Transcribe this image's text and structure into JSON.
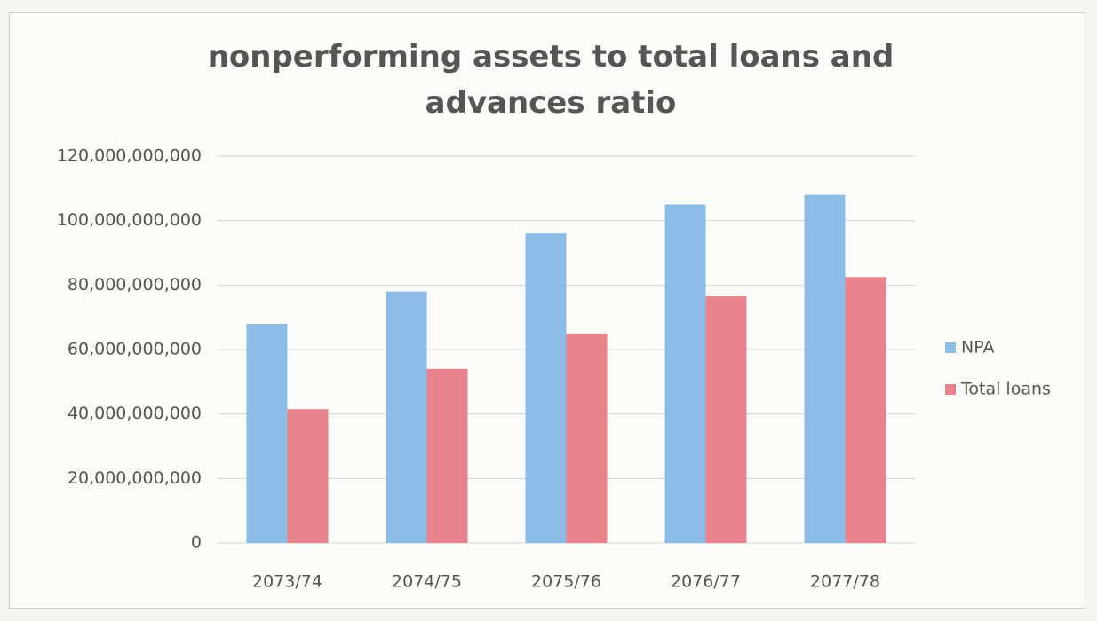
{
  "chart_data": {
    "type": "bar",
    "title": "nonperforming assets to total loans and advances ratio",
    "categories": [
      "2073/74",
      "2074/75",
      "2075/76",
      "2076/77",
      "2077/78"
    ],
    "series": [
      {
        "name": "NPA",
        "color": "#8dbde6",
        "values": [
          68000000000,
          78000000000,
          96000000000,
          105000000000,
          108000000000
        ]
      },
      {
        "name": "Total loans",
        "color": "#e8838e",
        "values": [
          41500000000,
          54000000000,
          65000000000,
          76500000000,
          82500000000
        ]
      }
    ],
    "ylim": [
      0,
      120000000000
    ],
    "yticks": [
      0,
      {
        "value": 20000000000,
        "label": "20,000,000,000"
      },
      {
        "value": 40000000000,
        "label": "40,000,000,000"
      },
      {
        "value": 60000000000,
        "label": "60,000,000,000"
      },
      {
        "value": 80000000000,
        "label": "80,000,000,000"
      },
      {
        "value": 100000000000,
        "label": "100,000,000,000"
      },
      {
        "value": 120000000000,
        "label": "120,000,000,000"
      }
    ],
    "grid": true,
    "legend": "right"
  }
}
